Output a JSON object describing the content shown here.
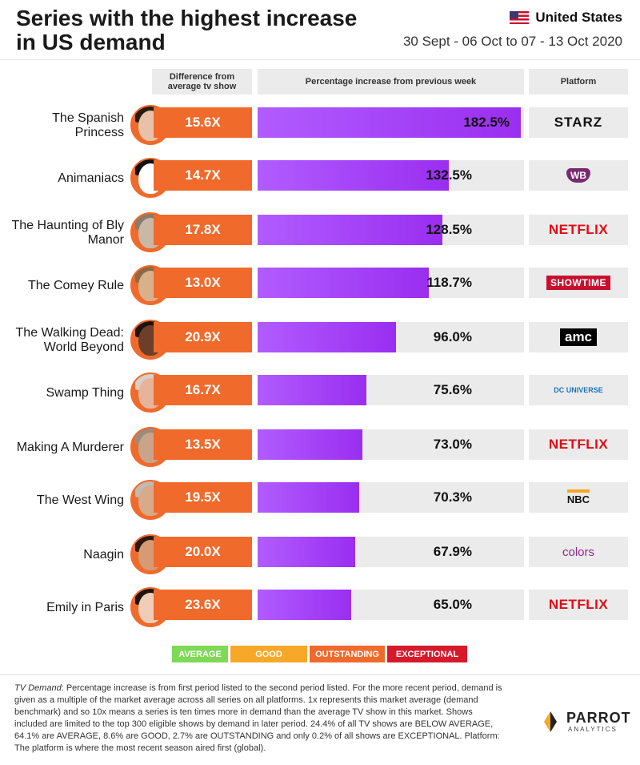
{
  "header": {
    "title": "Series with the highest increase in US demand",
    "region": "United States",
    "period": "30 Sept - 06 Oct to 07 - 13 Oct 2020"
  },
  "columns": {
    "difference": "Difference from average tv show",
    "percentage": "Percentage increase from previous week",
    "platform": "Platform"
  },
  "chart_data": {
    "type": "bar",
    "categories": [
      "The Spanish Princess",
      "Animaniacs",
      "The Haunting of Bly Manor",
      "The Comey Rule",
      "The Walking Dead: World Beyond",
      "Swamp Thing",
      "Making A Murderer",
      "The West Wing",
      "Naagin",
      "Emily in Paris"
    ],
    "series": [
      {
        "values": [
          182.5,
          132.5,
          128.5,
          118.7,
          96.0,
          75.6,
          73.0,
          70.3,
          67.9,
          65.0
        ]
      }
    ],
    "xlim": [
      0,
      185
    ],
    "difference_multiples": [
      "15.6X",
      "14.7X",
      "17.8X",
      "13.0X",
      "20.9X",
      "16.7X",
      "13.5X",
      "19.5X",
      "20.0X",
      "23.6X"
    ]
  },
  "rows": [
    {
      "name": "The Spanish Princess",
      "diff": "15.6X",
      "value": 182.5,
      "pct": "182.5%",
      "platform": "STARZ"
    },
    {
      "name": "Animaniacs",
      "diff": "14.7X",
      "value": 132.5,
      "pct": "132.5%",
      "platform": "WB"
    },
    {
      "name": "The Haunting of Bly Manor",
      "diff": "17.8X",
      "value": 128.5,
      "pct": "128.5%",
      "platform": "NETFLIX"
    },
    {
      "name": "The Comey Rule",
      "diff": "13.0X",
      "value": 118.7,
      "pct": "118.7%",
      "platform": "SHOWTIME"
    },
    {
      "name": "The Walking Dead: World Beyond",
      "diff": "20.9X",
      "value": 96.0,
      "pct": "96.0%",
      "platform": "amc"
    },
    {
      "name": "Swamp Thing",
      "diff": "16.7X",
      "value": 75.6,
      "pct": "75.6%",
      "platform": "DC UNIVERSE"
    },
    {
      "name": "Making A Murderer",
      "diff": "13.5X",
      "value": 73.0,
      "pct": "73.0%",
      "platform": "NETFLIX"
    },
    {
      "name": "The West Wing",
      "diff": "19.5X",
      "value": 70.3,
      "pct": "70.3%",
      "platform": "NBC"
    },
    {
      "name": "Naagin",
      "diff": "20.0X",
      "value": 67.9,
      "pct": "67.9%",
      "platform": "colors"
    },
    {
      "name": "Emily in Paris",
      "diff": "23.6X",
      "value": 65.0,
      "pct": "65.0%",
      "platform": "NETFLIX"
    }
  ],
  "legend": [
    {
      "label": "AVERAGE",
      "color": "#7ed957"
    },
    {
      "label": "GOOD",
      "color": "#f7a829"
    },
    {
      "label": "OUTSTANDING",
      "color": "#f06a2c"
    },
    {
      "label": "EXCEPTIONAL",
      "color": "#d7192c"
    }
  ],
  "footnote": {
    "lead": "TV Demand",
    "text": ": Percentage increase is from first period listed to the second period listed. For the more recent period, demand is given as a multiple of the market average across all series on all platforms. 1x represents this market average (demand benchmark) and so 10x means a series is ten times more in demand than the average TV show in this market. Shows included are limited to the top 300 eligible shows by demand in later period. 24.4% of all TV shows are BELOW AVERAGE, 64.1% are AVERAGE, 8.6% are GOOD, 2.7% are OUTSTANDING and only 0.2% of all shows are EXCEPTIONAL. Platform: The platform is where the most recent season aired first (global)."
  },
  "brand": {
    "name": "PARROT",
    "sub": "ANALYTICS"
  },
  "colors": {
    "outstanding": "#f06a2c",
    "bar": "#a64dff",
    "netflix": "#e50914"
  }
}
